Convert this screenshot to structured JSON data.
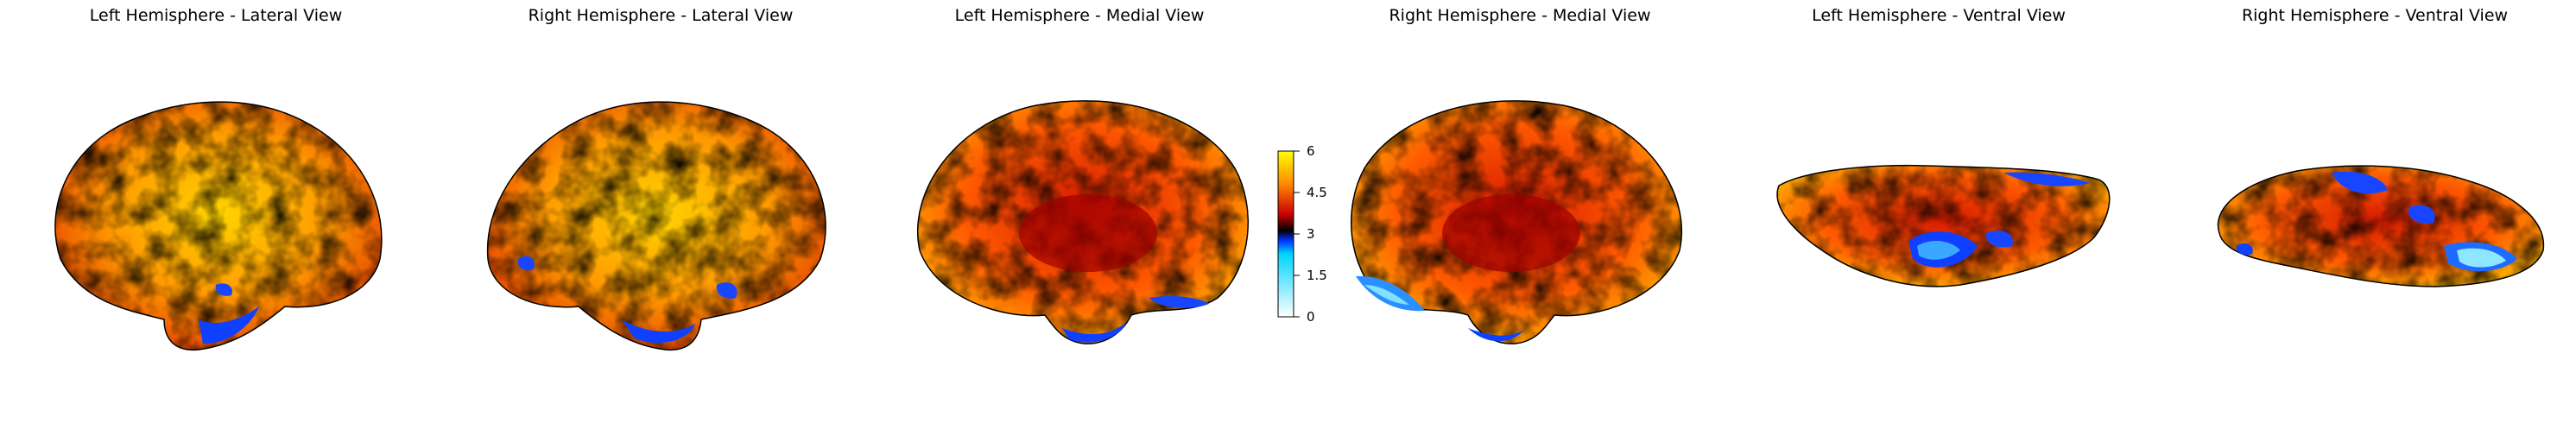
{
  "figure": {
    "panels": [
      {
        "title": "Left Hemisphere - Lateral View",
        "icon": "brain-left-lateral-icon"
      },
      {
        "title": "Right Hemisphere - Lateral View",
        "icon": "brain-right-lateral-icon"
      },
      {
        "title": "Left Hemisphere - Medial View",
        "icon": "brain-left-medial-icon"
      },
      {
        "title": "Right Hemisphere - Medial View",
        "icon": "brain-right-medial-icon"
      },
      {
        "title": "Left Hemisphere - Ventral View",
        "icon": "brain-left-ventral-icon"
      },
      {
        "title": "Right Hemisphere - Ventral View",
        "icon": "brain-right-ventral-icon"
      }
    ],
    "colorbar": {
      "ticks": [
        "6",
        "4.5",
        "3",
        "1.5",
        "0"
      ],
      "min": 0,
      "max": 6,
      "colors": [
        "#ffffff",
        "#00d4ff",
        "#0033ff",
        "#000000",
        "#cc0000",
        "#ff8800",
        "#ffff00"
      ]
    }
  }
}
